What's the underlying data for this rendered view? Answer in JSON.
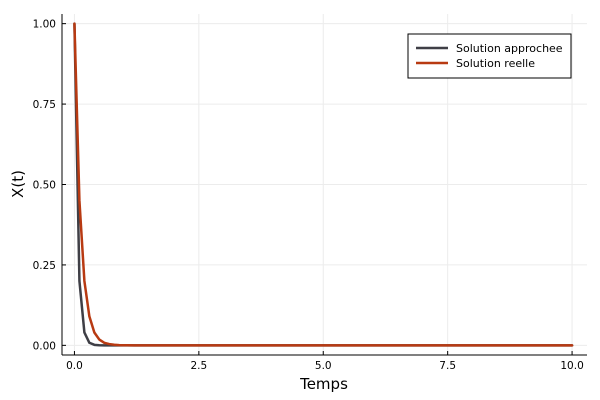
{
  "chart_data": {
    "type": "line",
    "xlabel": "Temps",
    "ylabel": "X(t)",
    "xlim": [
      -0.25,
      10.3
    ],
    "ylim": [
      -0.03,
      1.03
    ],
    "x_ticks": [
      0.0,
      2.5,
      5.0,
      7.5,
      10.0
    ],
    "x_tick_labels": [
      "0.0",
      "2.5",
      "5.0",
      "7.5",
      "10.0"
    ],
    "y_ticks": [
      0.0,
      0.25,
      0.5,
      0.75,
      1.0
    ],
    "y_tick_labels": [
      "0.00",
      "0.25",
      "0.50",
      "0.75",
      "1.00"
    ],
    "grid": true,
    "legend_position": "top-right",
    "series": [
      {
        "name": "Solution approchee",
        "color": "#3f3f46",
        "x": [
          0.0,
          0.1,
          0.2,
          0.3,
          0.4,
          0.5,
          0.6,
          0.7,
          0.8,
          1.0,
          1.5,
          2.0,
          3.0,
          4.0,
          5.0,
          6.0,
          7.0,
          8.0,
          9.0,
          10.0
        ],
        "y": [
          1.0,
          0.2,
          0.04,
          0.008,
          0.0016,
          0.0003,
          0.0001,
          0.0,
          0.0,
          0.0,
          0.0,
          0.0,
          0.0,
          0.0,
          0.0,
          0.0,
          0.0,
          0.0,
          0.0,
          0.0
        ]
      },
      {
        "name": "Solution reelle",
        "color": "#b83a12",
        "x": [
          0.0,
          0.1,
          0.2,
          0.3,
          0.4,
          0.5,
          0.6,
          0.7,
          0.8,
          0.9,
          1.0,
          1.2,
          1.5,
          2.0,
          3.0,
          4.0,
          5.0,
          6.0,
          7.0,
          8.0,
          9.0,
          10.0
        ],
        "y": [
          1.0,
          0.45,
          0.2,
          0.09,
          0.04,
          0.018,
          0.008,
          0.004,
          0.0018,
          0.0008,
          0.0004,
          0.0001,
          0.0,
          0.0,
          0.0,
          0.0,
          0.0,
          0.0,
          0.0,
          0.0,
          0.0,
          0.0
        ]
      }
    ]
  }
}
